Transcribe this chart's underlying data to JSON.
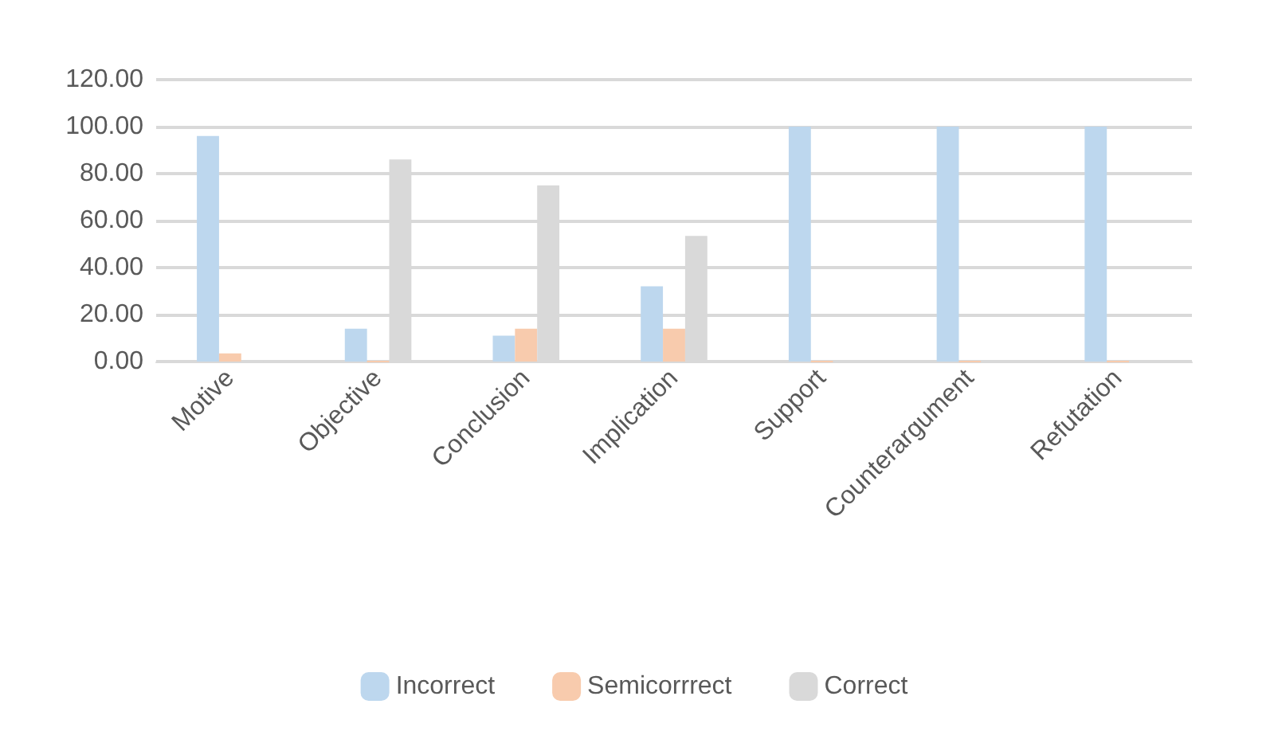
{
  "chart_data": {
    "type": "bar",
    "categories": [
      "Motive",
      "Objective",
      "Conclusion",
      "Implication",
      "Support",
      "Counterargument",
      "Refutation"
    ],
    "series": [
      {
        "name": "Incorrect",
        "color": "#bdd7ee",
        "values": [
          96,
          14,
          11,
          32,
          100,
          100,
          100
        ]
      },
      {
        "name": "Semicorrrect",
        "color": "#f8cbad",
        "values": [
          3.5,
          0,
          14,
          14,
          0,
          0,
          0
        ]
      },
      {
        "name": "Correct",
        "color": "#d9d9d9",
        "values": [
          0,
          86,
          75,
          53.5,
          0,
          0,
          0
        ]
      }
    ],
    "ylim": [
      0,
      120
    ],
    "yticks": [
      {
        "value": 0,
        "label": "0.00"
      },
      {
        "value": 20,
        "label": "20.00"
      },
      {
        "value": 40,
        "label": "40.00"
      },
      {
        "value": 60,
        "label": "60.00"
      },
      {
        "value": 80,
        "label": "80.00"
      },
      {
        "value": 100,
        "label": "100.00"
      },
      {
        "value": 120,
        "label": "120.00"
      }
    ],
    "grid": "y",
    "legend": "bottom"
  }
}
